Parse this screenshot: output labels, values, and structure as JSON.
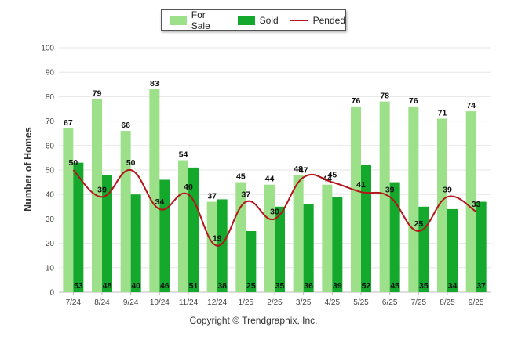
{
  "chart_data": {
    "type": "bar",
    "categories": [
      "7/24",
      "8/24",
      "9/24",
      "10/24",
      "11/24",
      "12/24",
      "1/25",
      "2/25",
      "3/25",
      "4/25",
      "5/25",
      "6/25",
      "7/25",
      "8/25",
      "9/25"
    ],
    "series": [
      {
        "name": "For Sale",
        "kind": "bar",
        "color": "#9de08a",
        "values": [
          67,
          79,
          66,
          83,
          54,
          37,
          45,
          44,
          48,
          44,
          76,
          78,
          76,
          71,
          74
        ]
      },
      {
        "name": "Sold",
        "kind": "bar",
        "color": "#14a82c",
        "values": [
          53,
          48,
          40,
          46,
          51,
          38,
          25,
          35,
          36,
          39,
          52,
          45,
          35,
          34,
          37
        ]
      },
      {
        "name": "Pended",
        "kind": "line",
        "color": "#b4151b",
        "values": [
          50,
          39,
          50,
          34,
          40,
          19,
          37,
          30,
          47,
          45,
          41,
          39,
          25,
          39,
          33
        ]
      }
    ],
    "ylabel": "Number of Homes",
    "xlabel": "",
    "ylim": [
      0,
      100
    ],
    "yticks": [
      0,
      10,
      20,
      30,
      40,
      50,
      60,
      70,
      80,
      90,
      100
    ],
    "legend": "top-center",
    "grid": true
  },
  "footer": "Copyright © Trendgraphix, Inc."
}
